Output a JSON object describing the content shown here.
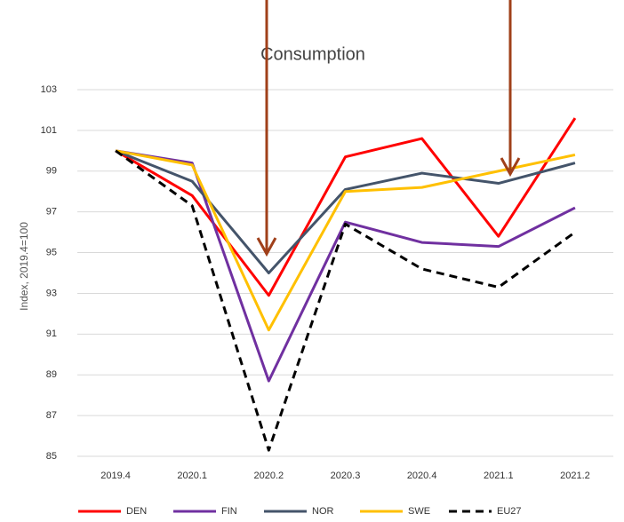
{
  "chart_data": {
    "type": "line",
    "title": "Consumption",
    "y_label": "Index, 2019.4=100",
    "categories": [
      "2019.4",
      "2020.1",
      "2020.2",
      "2020.3",
      "2020.4",
      "2021.1",
      "2021.2"
    ],
    "series": [
      {
        "name": "DEN",
        "color": "#ff0000",
        "values": [
          100,
          97.8,
          92.9,
          99.7,
          100.6,
          95.8,
          101.6
        ]
      },
      {
        "name": "FIN",
        "color": "#7030a0",
        "values": [
          100,
          99.4,
          88.7,
          96.5,
          95.5,
          95.3,
          97.2
        ]
      },
      {
        "name": "NOR",
        "color": "#44546a",
        "values": [
          100,
          98.5,
          94.0,
          98.1,
          98.9,
          98.4,
          99.4
        ]
      },
      {
        "name": "SWE",
        "color": "#ffc000",
        "values": [
          100,
          99.3,
          91.2,
          98.0,
          98.2,
          99.0,
          99.8
        ]
      },
      {
        "name": "EU27",
        "color": "#000000",
        "dashed": true,
        "values": [
          100,
          97.3,
          85.3,
          96.4,
          94.2,
          93.3,
          96.0
        ]
      }
    ],
    "ylim": [
      85,
      103
    ],
    "yticks": [
      85,
      87,
      89,
      91,
      93,
      95,
      97,
      99,
      101,
      103
    ],
    "grid": true,
    "legend": "bottom"
  }
}
